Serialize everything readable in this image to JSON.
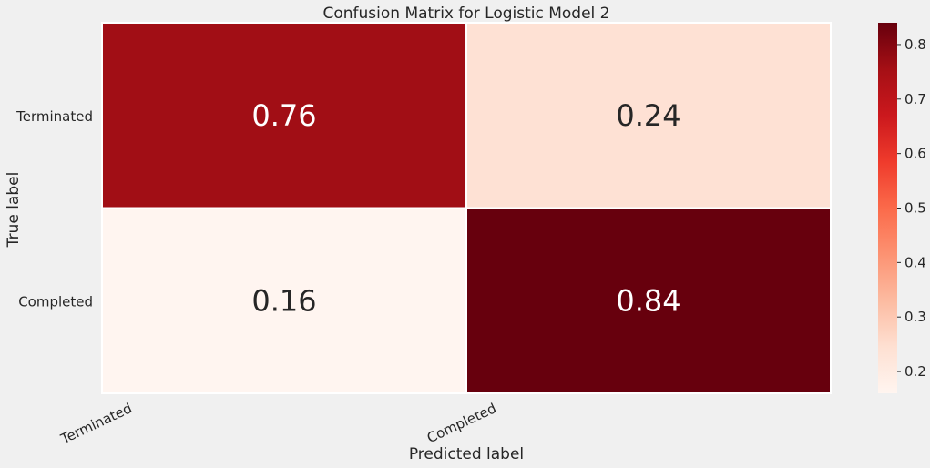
{
  "chart_data": {
    "type": "heatmap",
    "title": "Confusion Matrix for Logistic Model 2",
    "xlabel": "Predicted label",
    "ylabel": "True label",
    "x_categories": [
      "Terminated",
      "Completed"
    ],
    "y_categories": [
      "Terminated",
      "Completed"
    ],
    "values": [
      [
        0.76,
        0.24
      ],
      [
        0.16,
        0.84
      ]
    ],
    "value_labels": [
      [
        "0.76",
        "0.24"
      ],
      [
        "0.16",
        "0.84"
      ]
    ],
    "colormap": "Reds",
    "colorbar": {
      "range": [
        0.16,
        0.84
      ],
      "ticks": [
        0.2,
        0.3,
        0.4,
        0.5,
        0.6,
        0.7,
        0.8
      ],
      "tick_labels": [
        "0.2",
        "0.3",
        "0.4",
        "0.5",
        "0.6",
        "0.7",
        "0.8"
      ]
    },
    "colors": {
      "background": "#f0f0f0",
      "text_dark": "#262626",
      "text_light": "#ffffff",
      "cell_border": "#ffffff"
    }
  }
}
